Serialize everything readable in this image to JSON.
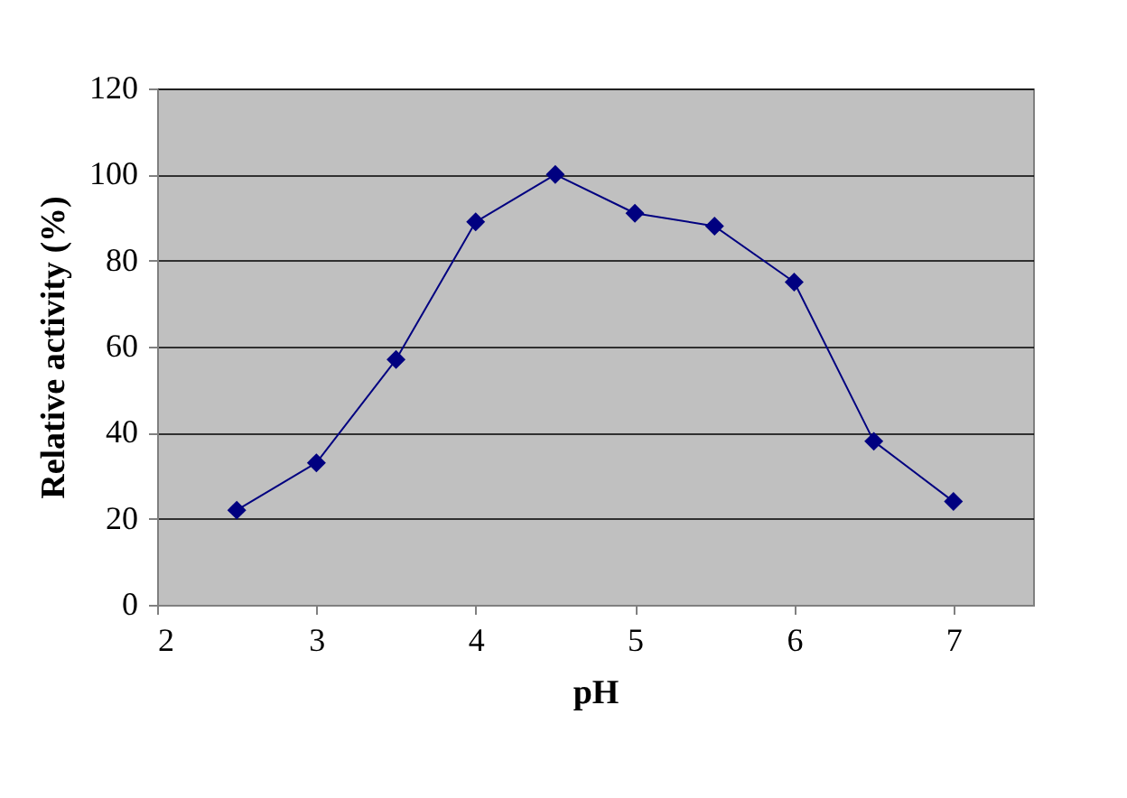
{
  "chart_data": {
    "type": "line",
    "xlabel": "pH",
    "ylabel": "Relative activity (%)",
    "x": [
      2.5,
      3,
      3.5,
      4,
      4.5,
      5,
      5.5,
      6,
      6.5,
      7
    ],
    "series": [
      {
        "color": "#000080",
        "values": [
          22,
          33,
          57,
          89,
          100,
          91,
          88,
          75,
          38,
          24
        ]
      }
    ],
    "xlim": [
      2,
      7.5
    ],
    "xticks": [
      2,
      3,
      4,
      5,
      6,
      7
    ],
    "ylim": [
      0,
      120
    ],
    "yticks": [
      0,
      20,
      40,
      60,
      80,
      100,
      120
    ],
    "grid": "y",
    "marker": "diamond",
    "line_style": "solid"
  }
}
